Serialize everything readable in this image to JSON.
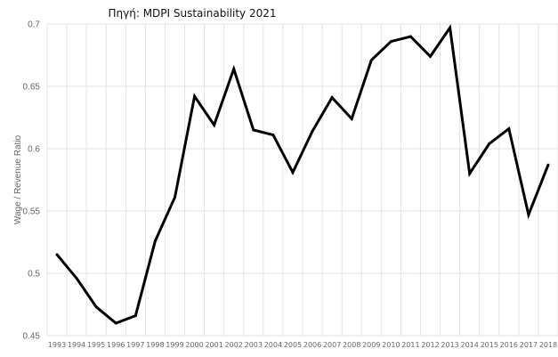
{
  "caption": "Πηγή: MDPI Sustainability 2021",
  "chart_data": {
    "type": "line",
    "title": "",
    "xlabel": "",
    "ylabel": "Wage / Revenue Ratio",
    "ylim": [
      0.45,
      0.7
    ],
    "yticks": [
      "0.45",
      "0.5",
      "0.55",
      "0.6",
      "0.65",
      "0.7"
    ],
    "grid": true,
    "line_color": "#000000",
    "categories": [
      "1993",
      "1994",
      "1995",
      "1996",
      "1997",
      "1998",
      "1999",
      "2000",
      "2001",
      "2002",
      "2003",
      "2004",
      "2005",
      "2006",
      "2007",
      "2008",
      "2009",
      "2010",
      "2011",
      "2012",
      "2013",
      "2014",
      "2015",
      "2016",
      "2017",
      "2018"
    ],
    "values": [
      0.515,
      0.496,
      0.473,
      0.46,
      0.466,
      0.526,
      0.561,
      0.642,
      0.619,
      0.664,
      0.615,
      0.611,
      0.581,
      0.614,
      0.641,
      0.624,
      0.671,
      0.686,
      0.69,
      0.674,
      0.697,
      0.58,
      0.604,
      0.616,
      0.547,
      0.587
    ]
  }
}
